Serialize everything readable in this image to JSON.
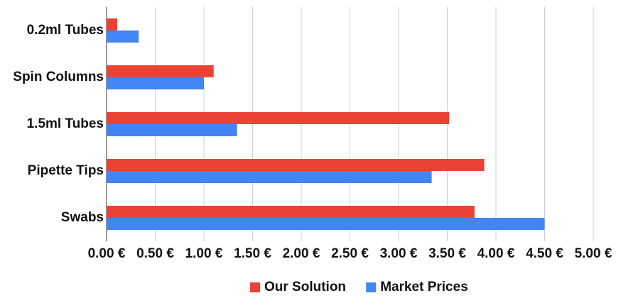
{
  "chart_data": {
    "type": "hbar",
    "categories": [
      "0.2ml Tubes",
      "Spin Columns",
      "1.5ml Tubes",
      "Pipette Tips",
      "Swabs"
    ],
    "series": [
      {
        "name": "Our Solution",
        "color": "#ea4335",
        "values": [
          0.11,
          1.1,
          3.52,
          3.88,
          3.78
        ]
      },
      {
        "name": "Market Prices",
        "color": "#4285f4",
        "values": [
          0.33,
          1.0,
          1.34,
          3.34,
          4.5
        ]
      }
    ],
    "xlim": [
      0,
      5
    ],
    "xticks": [
      {
        "value": 0,
        "label": "0.00 €"
      },
      {
        "value": 0.5,
        "label": "0.50 €"
      },
      {
        "value": 1,
        "label": "1.00 €"
      },
      {
        "value": 1.5,
        "label": "1.50 €"
      },
      {
        "value": 2,
        "label": "2.00 €"
      },
      {
        "value": 2.5,
        "label": "2.50 €"
      },
      {
        "value": 3,
        "label": "3.00 €"
      },
      {
        "value": 3.5,
        "label": "3.50 €"
      },
      {
        "value": 4,
        "label": "4.00 €"
      },
      {
        "value": 4.5,
        "label": "4.50 €"
      },
      {
        "value": 5,
        "label": "5.00 €"
      }
    ],
    "grid": true,
    "legend": "bottom"
  }
}
